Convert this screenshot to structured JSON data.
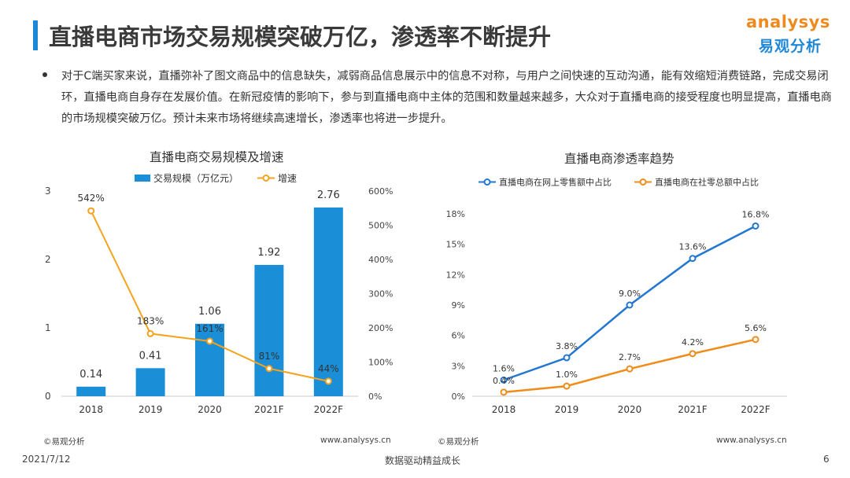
{
  "header": {
    "title": "直播电商市场交易规模突破万亿，渗透率不断提升",
    "logo_en": "analysys",
    "logo_cn": "易观分析"
  },
  "body_text": "对于C端买家来说，直播弥补了图文商品中的信息缺失，减弱商品信息展示中的信息不对称，与用户之间快速的互动沟通，能有效缩短消费链路，完成交易闭环，直播电商自身存在发展价值。在新冠疫情的影响下，参与到直播电商中主体的范围和数量越来越多，大众对于直播电商的接受程度也明显提高，直播电商的市场规模突破万亿。预计未来市场将继续高速增长，渗透率也将进一步提升。",
  "footer": {
    "date": "2021/7/12",
    "slogan": "数据驱动精益成长",
    "page": "6",
    "left_source": "©易观分析",
    "left_url": "www.analysys.cn",
    "right_source": "©易观分析",
    "right_url": "www.analysys.cn"
  },
  "chart_data": [
    {
      "type": "bar",
      "title": "直播电商交易规模及增速",
      "categories": [
        "2018",
        "2019",
        "2020",
        "2021F",
        "2022F"
      ],
      "series": [
        {
          "name": "交易规模（万亿元）",
          "type": "bar",
          "axis": "left",
          "color": "#1a8fd8",
          "values": [
            0.14,
            0.41,
            1.06,
            1.92,
            2.76
          ],
          "labels": [
            "0.14",
            "0.41",
            "1.06",
            "1.92",
            "2.76"
          ]
        },
        {
          "name": "增速",
          "type": "line",
          "axis": "right",
          "color": "#f5a31c",
          "values": [
            542,
            183,
            161,
            81,
            44
          ],
          "labels": [
            "542%",
            "183%",
            "161%",
            "81%",
            "44%"
          ]
        }
      ],
      "y_left": {
        "range": [
          0,
          3
        ],
        "ticks": [
          "0",
          "1",
          "2",
          "3"
        ]
      },
      "y_right": {
        "range": [
          0,
          600
        ],
        "ticks": [
          "0%",
          "100%",
          "200%",
          "300%",
          "400%",
          "500%",
          "600%"
        ]
      },
      "grid": false,
      "legend": "top-center"
    },
    {
      "type": "line",
      "title": "直播电商渗透率趋势",
      "categories": [
        "2018",
        "2019",
        "2020",
        "2021F",
        "2022F"
      ],
      "series": [
        {
          "name": "直播电商在网上零售额中占比",
          "color": "#2277d0",
          "values": [
            1.6,
            3.8,
            9.0,
            13.6,
            16.8
          ],
          "labels": [
            "1.6%",
            "3.8%",
            "9.0%",
            "13.6%",
            "16.8%"
          ]
        },
        {
          "name": "直播电商在社零总额中占比",
          "color": "#f08c19",
          "values": [
            0.4,
            1.0,
            2.7,
            4.2,
            5.6
          ],
          "labels": [
            "0.4%",
            "1.0%",
            "2.7%",
            "4.2%",
            "5.6%"
          ]
        }
      ],
      "y": {
        "range": [
          0,
          18
        ],
        "ticks": [
          "0%",
          "3%",
          "6%",
          "9%",
          "12%",
          "15%",
          "18%"
        ]
      },
      "grid": false,
      "legend": "top-center"
    }
  ]
}
